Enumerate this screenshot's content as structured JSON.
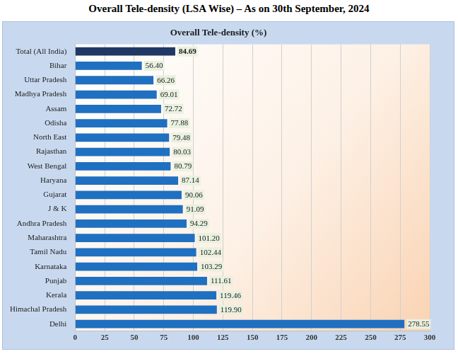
{
  "heading": "Overall Tele-density (LSA Wise) – As on 30th September, 2024",
  "chart_data": {
    "type": "bar",
    "orientation": "horizontal",
    "title": "Overall Tele-density (%)",
    "categories": [
      "Total (All India)",
      "Bihar",
      "Uttar Pradesh",
      "Madhya Pradesh",
      "Assam",
      "Odisha",
      "North East",
      "Rajasthan",
      "West Bengal",
      "Haryana",
      "Gujarat",
      "J & K",
      "Andhra Pradesh",
      "Maharashtra",
      "Tamil Nadu",
      "Karnataka",
      "Punjab",
      "Kerala",
      "Himachal Pradesh",
      "Delhi"
    ],
    "values": [
      84.69,
      56.4,
      66.26,
      69.01,
      72.72,
      77.88,
      79.48,
      80.03,
      80.79,
      87.14,
      90.06,
      91.09,
      94.29,
      101.2,
      102.44,
      103.29,
      111.61,
      119.46,
      119.9,
      278.55
    ],
    "value_labels": [
      "84.69",
      "56.40",
      "66.26",
      "69.01",
      "72.72",
      "77.88",
      "79.48",
      "80.03",
      "80.79",
      "87.14",
      "90.06",
      "91.09",
      "94.29",
      "101.20",
      "102.44",
      "103.29",
      "111.61",
      "119.46",
      "119.90",
      "278.55"
    ],
    "colors": [
      "#1f3864",
      "#1f70c1",
      "#1f70c1",
      "#1f70c1",
      "#1f70c1",
      "#1f70c1",
      "#1f70c1",
      "#1f70c1",
      "#1f70c1",
      "#1f70c1",
      "#1f70c1",
      "#1f70c1",
      "#1f70c1",
      "#1f70c1",
      "#1f70c1",
      "#1f70c1",
      "#1f70c1",
      "#1f70c1",
      "#1f70c1",
      "#1f70c1"
    ],
    "xlim": [
      0,
      300
    ],
    "xticks": [
      0,
      25,
      50,
      75,
      100,
      125,
      150,
      175,
      200,
      225,
      250,
      275,
      300
    ],
    "grid": true,
    "data_labels": true
  }
}
